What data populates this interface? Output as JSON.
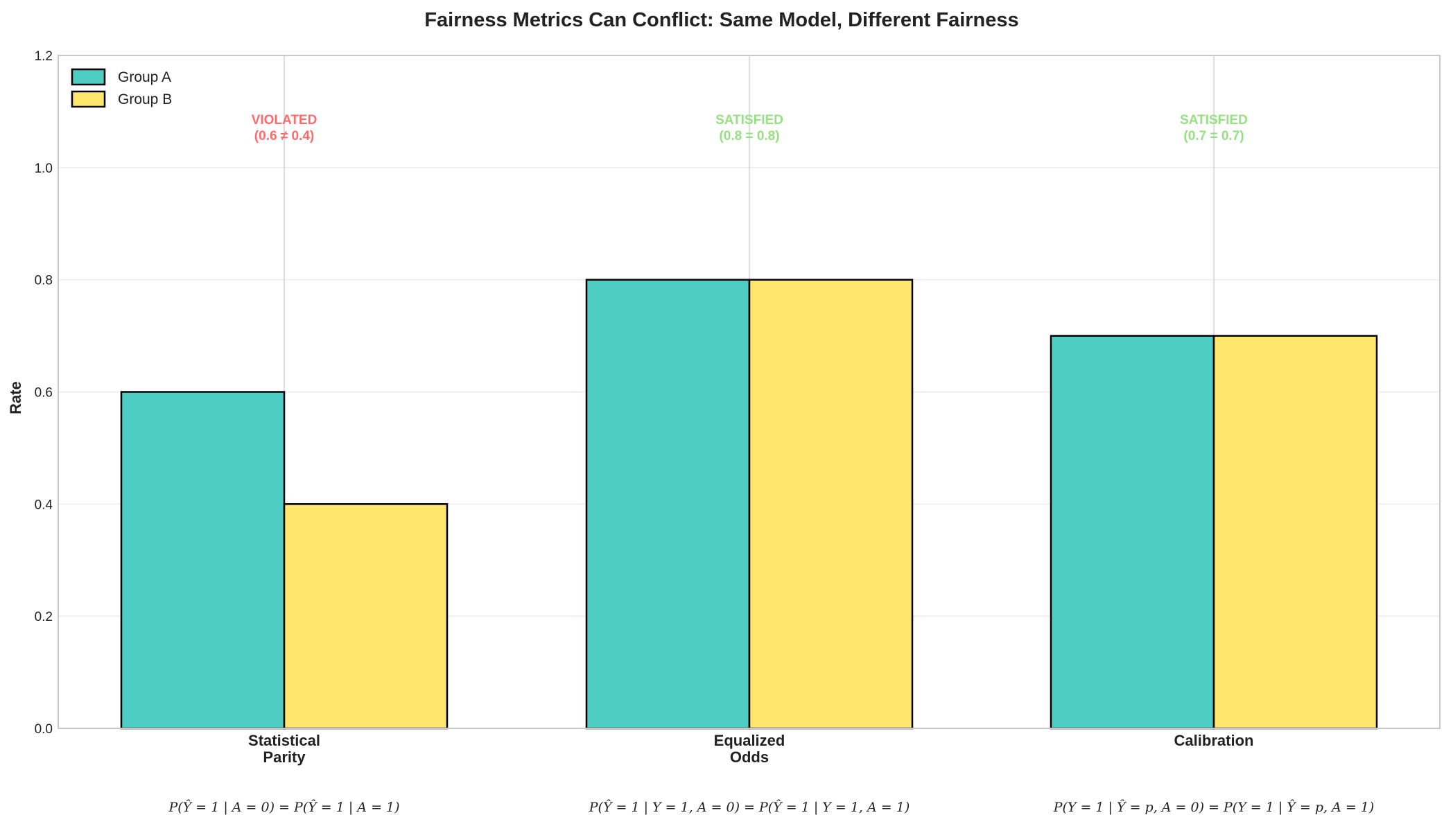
{
  "chart_data": {
    "type": "bar",
    "title": "Fairness Metrics Can Conflict: Same Model, Different Fairness",
    "xlabel": "",
    "ylabel": "Rate",
    "ylim": [
      0,
      1.2
    ],
    "yticks": [
      "0.0",
      "0.2",
      "0.4",
      "0.6",
      "0.8",
      "1.0",
      "1.2"
    ],
    "grid": true,
    "legend_position": "top-left",
    "categories": [
      {
        "line1": "Statistical",
        "line2": "Parity"
      },
      {
        "line1": "Equalized",
        "line2": "Odds"
      },
      {
        "line1": "Calibration",
        "line2": ""
      }
    ],
    "formulas": [
      "P(Ŷ = 1 | A = 0) = P(Ŷ = 1 | A = 1)",
      "P(Ŷ = 1 | Y = 1, A = 0) = P(Ŷ = 1 | Y = 1, A = 1)",
      "P(Y = 1 | Ŷ = p, A = 0) = P(Y = 1 | Ŷ = p, A = 1)"
    ],
    "series": [
      {
        "name": "Group A",
        "color": "#4ECDC4",
        "values": [
          0.6,
          0.8,
          0.7
        ]
      },
      {
        "name": "Group B",
        "color": "#FFE66D",
        "values": [
          0.4,
          0.8,
          0.7
        ]
      }
    ],
    "annotations": [
      {
        "status": "VIOLATED",
        "detail": "(0.6 ≠ 0.4)",
        "color": "#FF6B6B"
      },
      {
        "status": "SATISFIED",
        "detail": "(0.8 = 0.8)",
        "color": "#95E181"
      },
      {
        "status": "SATISFIED",
        "detail": "(0.7 = 0.7)",
        "color": "#95E181"
      }
    ]
  }
}
